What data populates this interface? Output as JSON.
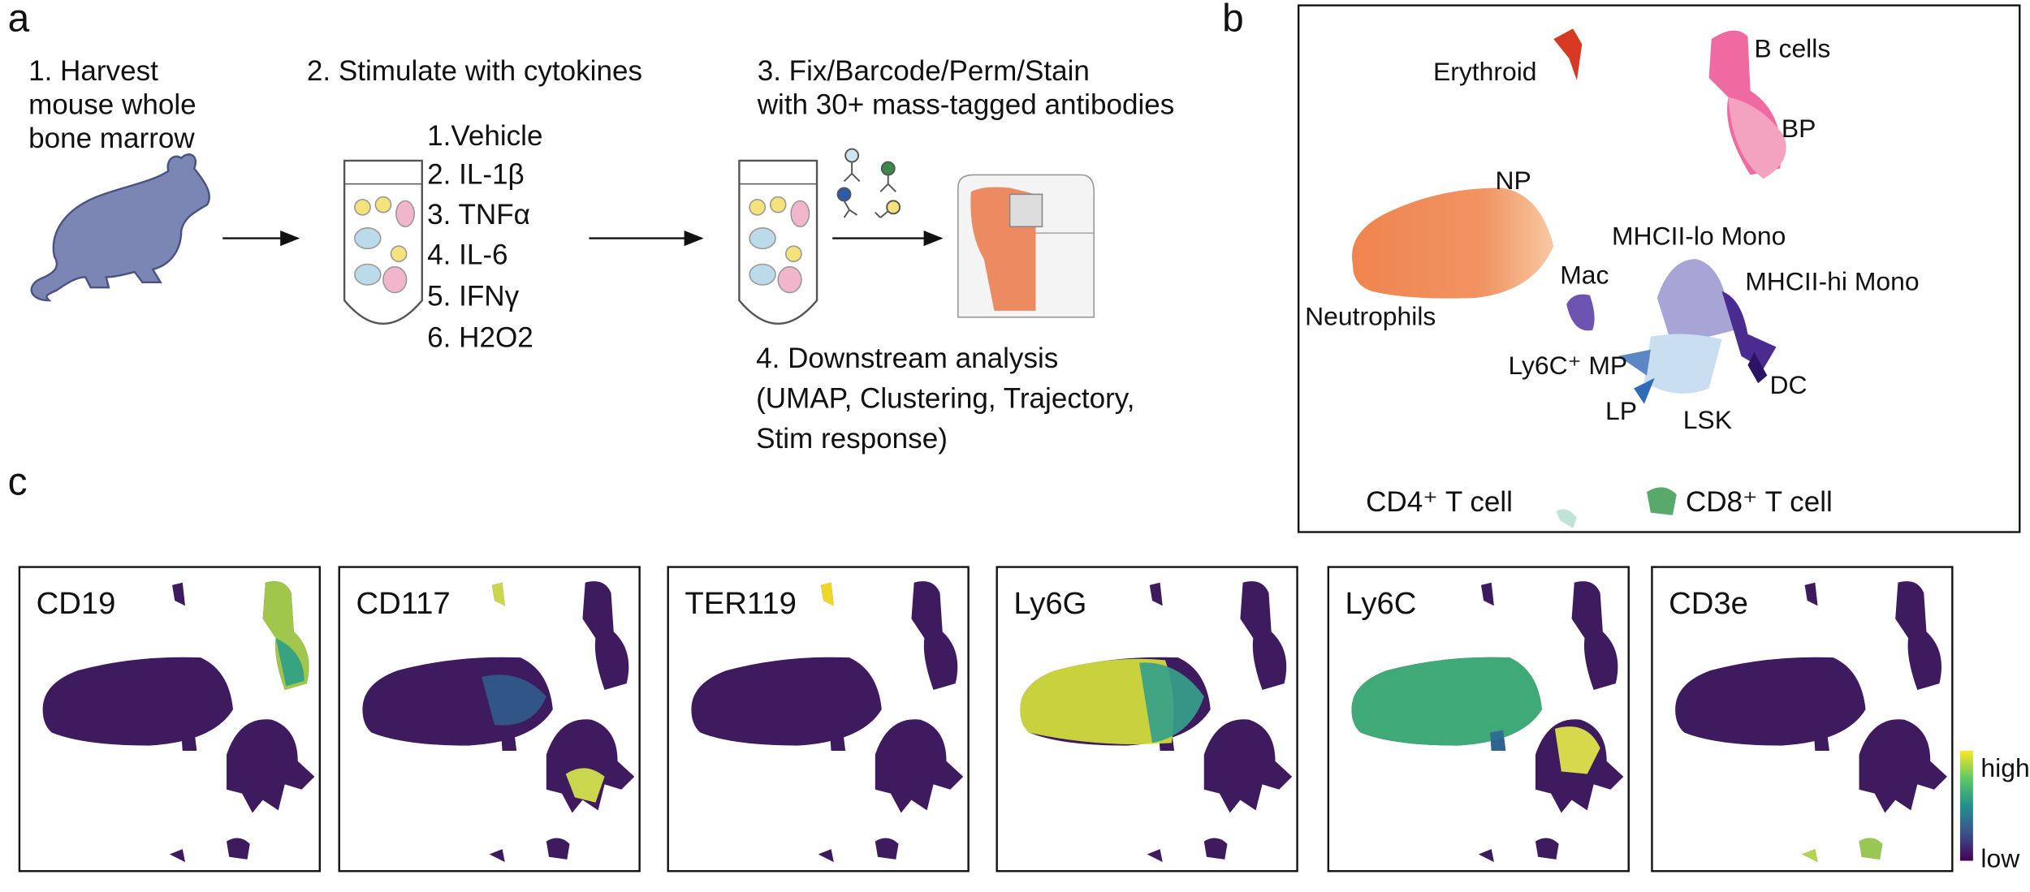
{
  "panel_a": {
    "label": "a",
    "step1": [
      "1. Harvest",
      "mouse whole",
      "bone marrow"
    ],
    "step2": "2. Stimulate with cytokines",
    "stimulations": [
      "1.Vehicle",
      "2. IL-1β",
      "3. TNFα",
      "4. IL-6",
      "5. IFNγ",
      "6. H2O2"
    ],
    "step3": [
      "3. Fix/Barcode/Perm/Stain",
      "with 30+ mass-tagged antibodies"
    ],
    "step4": [
      "4. Downstream analysis",
      "(UMAP, Clustering, Trajectory,",
      "Stim response)"
    ]
  },
  "panel_b": {
    "label": "b",
    "clusters": [
      "Erythroid",
      "B cells",
      "BP",
      "NP",
      "MHCII-lo Mono",
      "MHCII-hi Mono",
      "Mac",
      "Neutrophils",
      "Ly6C⁺ MP",
      "DC",
      "LP",
      "LSK",
      "CD4⁺ T cell",
      "CD8⁺ T cell"
    ]
  },
  "panel_c": {
    "label": "c",
    "markers": [
      "CD19",
      "CD117",
      "TER119",
      "Ly6G",
      "Ly6C",
      "CD3e"
    ],
    "colorbar": {
      "high": "high",
      "low": "low"
    }
  }
}
